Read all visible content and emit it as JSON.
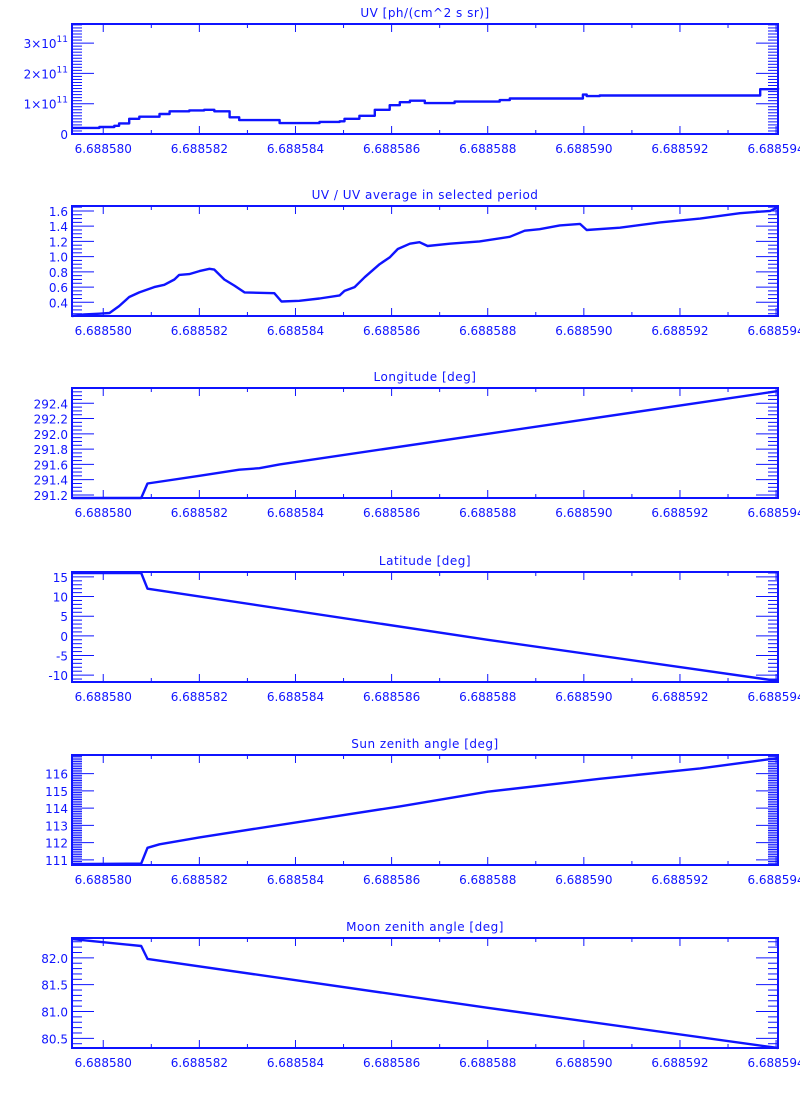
{
  "color": "#0f14ff",
  "background": "#ffffff",
  "chart_data": [
    {
      "type": "line",
      "step": "post",
      "title": "UV [ph/(cm^2 s sr)]",
      "xlim": [
        6.68857935,
        6.68859404
      ],
      "ylim": [
        0,
        363000000000.0
      ],
      "x_ticks": [
        6.68858,
        6.688582,
        6.688584,
        6.688586,
        6.688588,
        6.68859,
        6.688592,
        6.688594
      ],
      "x_tick_labels": [
        "6.688580",
        "6.688582",
        "6.688584",
        "6.688586",
        "6.688588",
        "6.688590",
        "6.688592",
        "6.688594"
      ],
      "y_ticks": [
        0,
        100000000000.0,
        200000000000.0,
        300000000000.0
      ],
      "y_tick_labels": [
        "0",
        "1×10^11",
        "2×10^11",
        "3×10^11"
      ],
      "y_minor": 10,
      "x": [
        6.68857935,
        6.68857992,
        6.68858023,
        6.68858033,
        6.68858054,
        6.68858075,
        6.68858117,
        6.68858138,
        6.68858179,
        6.6885821,
        6.68858231,
        6.68858263,
        6.68858283,
        6.68858363,
        6.68858367,
        6.68858408,
        6.6885845,
        6.68858492,
        6.68858502,
        6.68858533,
        6.68858565,
        6.68858596,
        6.68858617,
        6.68858638,
        6.68858669,
        6.68858731,
        6.68858825,
        6.68858846,
        6.68858998,
        6.68859006,
        6.68859033,
        6.68859367,
        6.68859404
      ],
      "y": [
        20000000000.0,
        23000000000.0,
        27000000000.0,
        35000000000.0,
        50000000000.0,
        57000000000.0,
        66000000000.0,
        75000000000.0,
        78000000000.0,
        80000000000.0,
        75000000000.0,
        55000000000.0,
        46000000000.0,
        46000000000.0,
        36000000000.0,
        36000000000.0,
        40000000000.0,
        42000000000.0,
        50000000000.0,
        60000000000.0,
        80000000000.0,
        95000000000.0,
        105000000000.0,
        110000000000.0,
        102000000000.0,
        107000000000.0,
        112000000000.0,
        117000000000.0,
        130000000000.0,
        125000000000.0,
        127000000000.0,
        148000000000.0,
        152000000000.0
      ]
    },
    {
      "type": "line",
      "title": "UV / UV average in selected period",
      "xlim": [
        6.68857935,
        6.68859404
      ],
      "ylim": [
        0.22,
        1.665
      ],
      "x_ticks": [
        6.68858,
        6.688582,
        6.688584,
        6.688586,
        6.688588,
        6.68859,
        6.688592,
        6.688594
      ],
      "x_tick_labels": [
        "6.688580",
        "6.688582",
        "6.688584",
        "6.688586",
        "6.688588",
        "6.688590",
        "6.688592",
        "6.688594"
      ],
      "y_ticks": [
        0.4,
        0.6,
        0.8,
        1.0,
        1.2,
        1.4,
        1.6
      ],
      "y_tick_labels": [
        "0.4",
        "0.6",
        "0.8",
        "1.0",
        "1.2",
        "1.4",
        "1.6"
      ],
      "y_minor": 4,
      "x": [
        6.68857935,
        6.6885796,
        6.68857992,
        6.68858013,
        6.68858033,
        6.68858054,
        6.68858075,
        6.68858106,
        6.68858127,
        6.68858148,
        6.68858158,
        6.68858179,
        6.688582,
        6.68858221,
        6.68858231,
        6.68858252,
        6.68858273,
        6.68858294,
        6.68858356,
        6.68858371,
        6.68858408,
        6.6885845,
        6.68858492,
        6.68858502,
        6.68858523,
        6.68858544,
        6.68858575,
        6.68858596,
        6.68858613,
        6.68858638,
        6.68858658,
        6.68858675,
        6.68858721,
        6.68858783,
        6.68858846,
        6.68858877,
        6.68858908,
        6.6885895,
        6.68858992,
        6.68859006,
        6.68859075,
        6.68859158,
        6.68859242,
        6.68859325,
        6.68859388,
        6.68859404
      ],
      "y": [
        0.22,
        0.24,
        0.25,
        0.26,
        0.35,
        0.47,
        0.53,
        0.6,
        0.63,
        0.7,
        0.76,
        0.77,
        0.81,
        0.84,
        0.83,
        0.7,
        0.62,
        0.53,
        0.52,
        0.41,
        0.42,
        0.45,
        0.49,
        0.55,
        0.6,
        0.73,
        0.9,
        0.99,
        1.1,
        1.17,
        1.19,
        1.14,
        1.17,
        1.2,
        1.26,
        1.34,
        1.36,
        1.41,
        1.43,
        1.35,
        1.38,
        1.45,
        1.5,
        1.57,
        1.6,
        1.65
      ]
    },
    {
      "type": "line",
      "title": "Longitude [deg]",
      "xlim": [
        6.68857935,
        6.68859404
      ],
      "ylim": [
        291.16,
        292.6
      ],
      "x_ticks": [
        6.68858,
        6.688582,
        6.688584,
        6.688586,
        6.688588,
        6.68859,
        6.688592,
        6.688594
      ],
      "x_tick_labels": [
        "6.688580",
        "6.688582",
        "6.688584",
        "6.688586",
        "6.688588",
        "6.688590",
        "6.688592",
        "6.688594"
      ],
      "y_ticks": [
        291.2,
        291.4,
        291.6,
        291.8,
        292.0,
        292.2,
        292.4
      ],
      "y_tick_labels": [
        "291.2",
        "291.4",
        "291.6",
        "291.8",
        "292.0",
        "292.2",
        "292.4"
      ],
      "y_minor": 4,
      "x": [
        6.68857935,
        6.68858079,
        6.68858092,
        6.688582,
        6.68858283,
        6.68858325,
        6.68858367,
        6.688588,
        6.68859404
      ],
      "y": [
        291.16,
        291.16,
        291.35,
        291.45,
        291.53,
        291.55,
        291.6,
        292.0,
        292.56
      ]
    },
    {
      "type": "line",
      "title": "Latitude [deg]",
      "xlim": [
        6.68857935,
        6.68859404
      ],
      "ylim": [
        -11.75,
        16.25
      ],
      "x_ticks": [
        6.68858,
        6.688582,
        6.688584,
        6.688586,
        6.688588,
        6.68859,
        6.688592,
        6.688594
      ],
      "x_tick_labels": [
        "6.688580",
        "6.688582",
        "6.688584",
        "6.688586",
        "6.688588",
        "6.688590",
        "6.688592",
        "6.688594"
      ],
      "y_ticks": [
        -10,
        -5,
        0,
        5,
        10,
        15
      ],
      "y_tick_labels": [
        "-10",
        "-5",
        "0",
        "5",
        "10",
        "15"
      ],
      "y_minor": 5,
      "x": [
        6.68857935,
        6.68858079,
        6.68858092,
        6.688588,
        6.68859404
      ],
      "y": [
        16,
        16,
        12,
        -1,
        -11.5
      ]
    },
    {
      "type": "line",
      "title": "Sun zenith angle [deg]",
      "xlim": [
        6.68857935,
        6.68859404
      ],
      "ylim": [
        110.7,
        117.08
      ],
      "x_ticks": [
        6.68858,
        6.688582,
        6.688584,
        6.688586,
        6.688588,
        6.68859,
        6.688592,
        6.688594
      ],
      "x_tick_labels": [
        "6.688580",
        "6.688582",
        "6.688584",
        "6.688586",
        "6.688588",
        "6.688590",
        "6.688592",
        "6.688594"
      ],
      "y_ticks": [
        111,
        112,
        113,
        114,
        115,
        116
      ],
      "y_tick_labels": [
        "111",
        "112",
        "113",
        "114",
        "115",
        "116"
      ],
      "y_minor": 10,
      "x": [
        6.68857935,
        6.68858079,
        6.68858092,
        6.68858117,
        6.688582,
        6.68858408,
        6.68858617,
        6.688588,
        6.68859033,
        6.68859242,
        6.68859404
      ],
      "y": [
        110.75,
        110.78,
        111.7,
        111.9,
        112.3,
        113.2,
        114.1,
        114.95,
        115.7,
        116.3,
        116.9
      ]
    },
    {
      "type": "line",
      "title": "Moon zenith angle [deg]",
      "xlim": [
        6.68857935,
        6.68859404
      ],
      "ylim": [
        80.32,
        82.37
      ],
      "x_ticks": [
        6.68858,
        6.688582,
        6.688584,
        6.688586,
        6.688588,
        6.68859,
        6.688592,
        6.688594
      ],
      "x_tick_labels": [
        "6.688580",
        "6.688582",
        "6.688584",
        "6.688586",
        "6.688588",
        "6.688590",
        "6.688592",
        "6.688594"
      ],
      "y_ticks": [
        80.5,
        81.0,
        81.5,
        82.0
      ],
      "y_tick_labels": [
        "80.5",
        "81.0",
        "81.5",
        "82.0"
      ],
      "y_minor": 5,
      "x": [
        6.68857935,
        6.68858079,
        6.68858092,
        6.688588,
        6.68859404
      ],
      "y": [
        82.35,
        82.22,
        81.98,
        81.07,
        80.32
      ]
    }
  ]
}
